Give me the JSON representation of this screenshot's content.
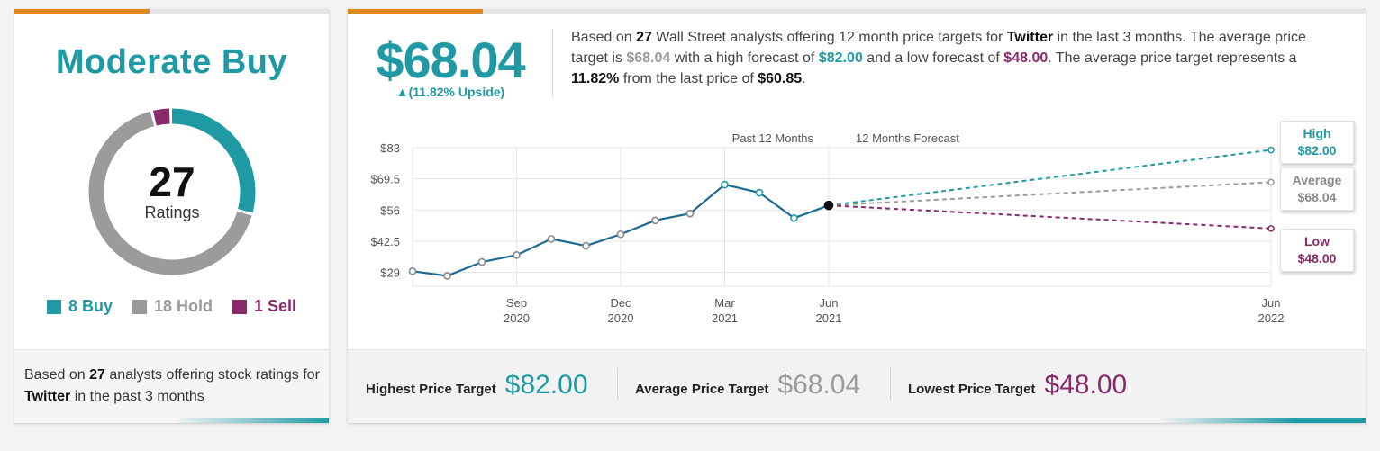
{
  "colors": {
    "buy": "#1f9aa4",
    "hold": "#9b9b9b",
    "sell": "#8a2a6a",
    "line": "#1d6a92",
    "accent": "#e0891c"
  },
  "ratings": {
    "consensus": "Moderate Buy",
    "total": "27",
    "total_label": "Ratings",
    "buy": 8,
    "hold": 18,
    "sell": 1,
    "legend": [
      {
        "label": "8 Buy",
        "color": "#1f9aa4"
      },
      {
        "label": "18 Hold",
        "color": "#9b9b9b"
      },
      {
        "label": "1 Sell",
        "color": "#8a2a6a"
      }
    ],
    "footer": {
      "pre": "Based on",
      "count": "27",
      "mid": "analysts offering stock ratings for",
      "company": "Twitter",
      "post": " in the past 3 months"
    }
  },
  "target": {
    "price": "$68.04",
    "upside": "▲(11.82% Upside)",
    "summary": {
      "t1": "Based on ",
      "analysts": "27",
      "t2": " Wall Street analysts offering 12 month price targets for ",
      "company": "Twitter",
      "t3": " in the last 3 months. The average price target is ",
      "avg": "$68.04",
      "t4": " with a high forecast of ",
      "high": "$82.00",
      "t5": " and a low forecast of ",
      "low": "$48.00",
      "t6": ". The average price target represents a ",
      "pct": "11.82%",
      "t7": " from the last price of ",
      "last": "$60.85",
      "t8": "."
    }
  },
  "chart_data": {
    "type": "line",
    "title": "",
    "section_labels": [
      "Past 12 Months",
      "12 Months Forecast"
    ],
    "y_ticks": [
      29,
      42.5,
      56,
      69.5,
      83
    ],
    "y_tick_labels": [
      "$29",
      "$42.5",
      "$56",
      "$69.5",
      "$83"
    ],
    "ylim": [
      23,
      83
    ],
    "x_ticks": [
      {
        "m": 3,
        "line1": "Sep",
        "line2": "2020"
      },
      {
        "m": 6,
        "line1": "Dec",
        "line2": "2020"
      },
      {
        "m": 9,
        "line1": "Mar",
        "line2": "2021"
      },
      {
        "m": 12,
        "line1": "Jun",
        "line2": "2021"
      },
      {
        "m": 24,
        "line1": "Jun",
        "line2": "2022"
      }
    ],
    "series": [
      {
        "values": [
          {
            "m": 0,
            "y": 29.5
          },
          {
            "m": 1,
            "y": 27.5
          },
          {
            "m": 2,
            "y": 33.5
          },
          {
            "m": 3,
            "y": 36.5
          },
          {
            "m": 4,
            "y": 43.5
          },
          {
            "m": 5,
            "y": 40.5
          },
          {
            "m": 6,
            "y": 45.5
          },
          {
            "m": 7,
            "y": 51.5
          },
          {
            "m": 8,
            "y": 54.5
          },
          {
            "m": 9,
            "y": 67
          },
          {
            "m": 10,
            "y": 63.5
          },
          {
            "m": 11,
            "y": 52.5
          },
          {
            "m": 12,
            "y": 58
          }
        ]
      }
    ],
    "forecast": [
      {
        "name": "High",
        "value": 82.0,
        "label": "$82.00",
        "color": "#1f9aa4"
      },
      {
        "name": "Average",
        "value": 68.04,
        "label": "$68.04",
        "color": "#9b9b9b"
      },
      {
        "name": "Low",
        "value": 48.0,
        "label": "$48.00",
        "color": "#8a2a6a"
      }
    ],
    "grid": true
  },
  "footer_targets": {
    "highest_label": "Highest Price Target",
    "highest": "$82.00",
    "average_label": "Average Price Target",
    "average": "$68.04",
    "lowest_label": "Lowest Price Target",
    "lowest": "$48.00"
  }
}
